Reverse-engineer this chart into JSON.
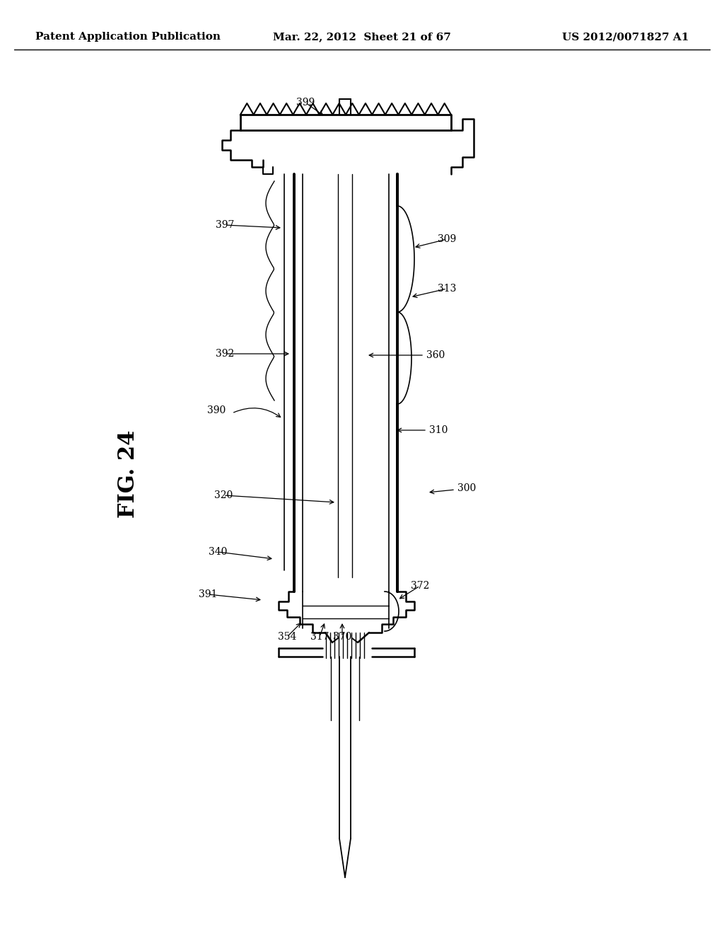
{
  "header_left": "Patent Application Publication",
  "header_mid": "Mar. 22, 2012  Sheet 21 of 67",
  "header_right": "US 2012/0071827 A1",
  "fig_label": "FIG. 24",
  "bg": "#ffffff",
  "lc": "#000000"
}
